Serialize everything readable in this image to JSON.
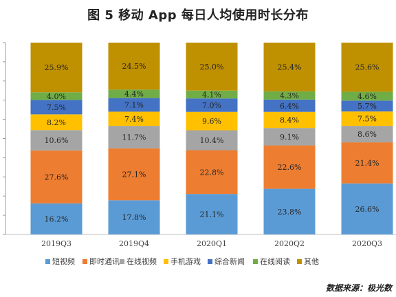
{
  "figure": {
    "title": "图 5   移动 App 每日人均使用时长分布",
    "source": "数据来源：极光数"
  },
  "chart_data": {
    "type": "bar",
    "stacked": true,
    "categories": [
      "2019Q3",
      "2019Q4",
      "2020Q1",
      "2020Q2",
      "2020Q3"
    ],
    "series": [
      {
        "name": "短视频",
        "color": "#5B9BD5",
        "values": [
          16.2,
          17.8,
          21.1,
          23.8,
          26.6
        ],
        "labels": [
          "16.2%",
          "17.8%",
          "21.1%",
          "23.8%",
          "26.6%"
        ]
      },
      {
        "name": "即时通讯",
        "color": "#ED7D31",
        "values": [
          27.6,
          27.1,
          22.8,
          22.6,
          21.4
        ],
        "labels": [
          "27.6%",
          "27.1%",
          "22.8%",
          "22.6%",
          "21.4%"
        ]
      },
      {
        "name": "在线视频",
        "color": "#A5A5A5",
        "values": [
          10.6,
          11.7,
          10.4,
          9.1,
          8.6
        ],
        "labels": [
          "10.6%",
          "11.7%",
          "10.4%",
          "9.1%",
          "8.6%"
        ]
      },
      {
        "name": "手机游戏",
        "color": "#FFC000",
        "values": [
          8.2,
          7.4,
          9.6,
          8.4,
          7.5
        ],
        "labels": [
          "8.2%",
          "7.4%",
          "9.6%",
          "8.4%",
          "7.5%"
        ]
      },
      {
        "name": "综合新闻",
        "color": "#4472C4",
        "values": [
          7.5,
          7.1,
          7.0,
          6.4,
          5.7
        ],
        "labels": [
          "7.5%",
          "7.1%",
          "7.0%",
          "6.4%",
          "5.7%"
        ]
      },
      {
        "name": "在线阅读",
        "color": "#70AD47",
        "values": [
          4.0,
          4.4,
          4.1,
          4.3,
          4.6
        ],
        "labels": [
          "4.0%",
          "4.4%",
          "4.1%",
          "4.3%",
          "4.6%"
        ]
      },
      {
        "name": "其他",
        "color": "#BF9000",
        "values": [
          25.9,
          24.5,
          25.0,
          25.4,
          25.6
        ],
        "labels": [
          "25.9%",
          "24.5%",
          "25.0%",
          "25.4%",
          "25.6%"
        ]
      }
    ],
    "ylim": [
      0,
      100
    ],
    "legend_position": "bottom",
    "grid": false
  }
}
